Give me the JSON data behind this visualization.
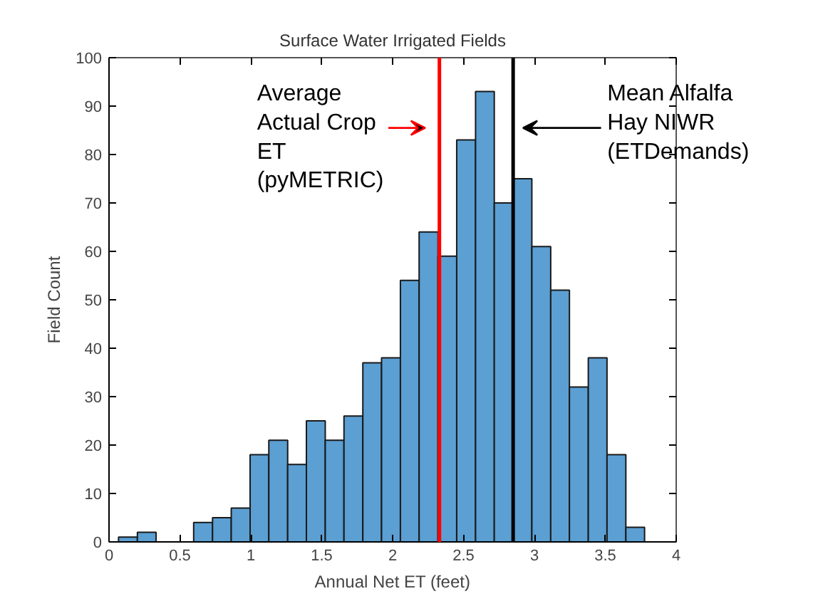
{
  "chart_data": {
    "type": "histogram",
    "title": "Surface Water Irrigated Fields",
    "xlabel": "Annual Net ET (feet)",
    "ylabel": "Field Count",
    "bins": [
      0.067,
      0.2,
      0.332,
      0.465,
      0.597,
      0.73,
      0.862,
      0.995,
      1.127,
      1.26,
      1.392,
      1.525,
      1.657,
      1.79,
      1.922,
      2.055,
      2.187,
      2.32,
      2.452,
      2.585,
      2.717,
      2.85,
      2.982,
      3.115,
      3.247,
      3.38,
      3.512,
      3.645,
      3.777
    ],
    "values": [
      1,
      2,
      0,
      0,
      4,
      5,
      7,
      18,
      21,
      16,
      25,
      21,
      26,
      37,
      38,
      54,
      64,
      59,
      83,
      93,
      70,
      75,
      61,
      52,
      32,
      38,
      18,
      3
    ],
    "color": "#5b9fd3",
    "xlim": [
      0,
      4
    ],
    "ylim": [
      0,
      100
    ],
    "xticks": [
      0,
      0.5,
      1,
      1.5,
      2,
      2.5,
      3,
      3.5,
      4
    ],
    "yticks": [
      0,
      10,
      20,
      30,
      40,
      50,
      60,
      70,
      80,
      90,
      100
    ],
    "grid": false,
    "ref_lines": [
      {
        "axis": "x",
        "value": 2.33,
        "label": "Average\nActual Crop\nET\n(pyMETRIC)",
        "color": "#ff0000"
      },
      {
        "axis": "x",
        "value": 2.85,
        "label": "Mean Alfalfa\nHay NIWR\n(ETDemands)",
        "color": "#000000"
      }
    ]
  }
}
